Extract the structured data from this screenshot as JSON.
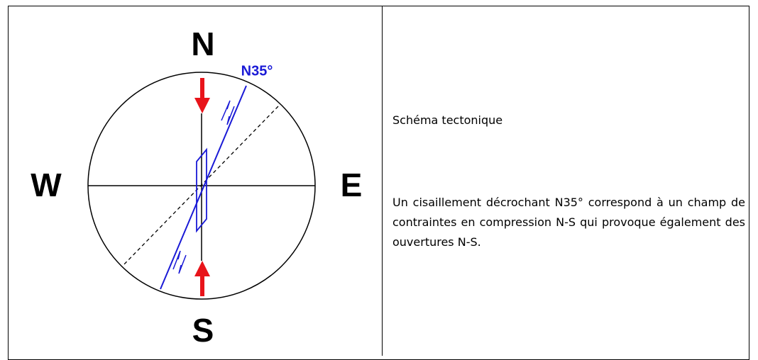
{
  "diagram": {
    "north": "N",
    "south": "S",
    "west": "W",
    "east": "E",
    "fault_label": "N35°"
  },
  "text": {
    "caption": "Schéma tectonique",
    "paragraph": "Un cisaillement décrochant N35° correspond à un champ de contraintes en compression N-S qui provoque également des ouvertures N-S."
  }
}
